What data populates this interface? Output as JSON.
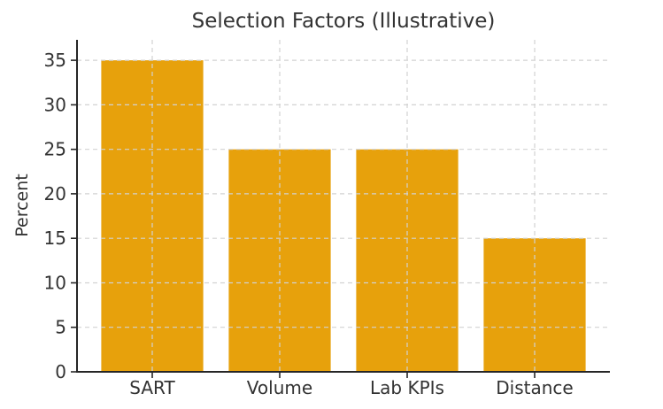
{
  "chart_data": {
    "type": "bar",
    "title": "Selection Factors (Illustrative)",
    "xlabel": "",
    "ylabel": "Percent",
    "categories": [
      "SART",
      "Volume",
      "Lab KPIs",
      "Distance"
    ],
    "values": [
      35,
      25,
      25,
      15
    ],
    "yticks": [
      0,
      5,
      10,
      15,
      20,
      25,
      30,
      35
    ],
    "ylim": [
      0,
      37.3
    ],
    "grid": true,
    "grid_style": "dashed",
    "legend_position": "none",
    "colors": {
      "bar": "#E7A10C",
      "grid": "#d2d2d2",
      "axis": "#262626",
      "text": "#333333",
      "background": "#ffffff"
    }
  }
}
